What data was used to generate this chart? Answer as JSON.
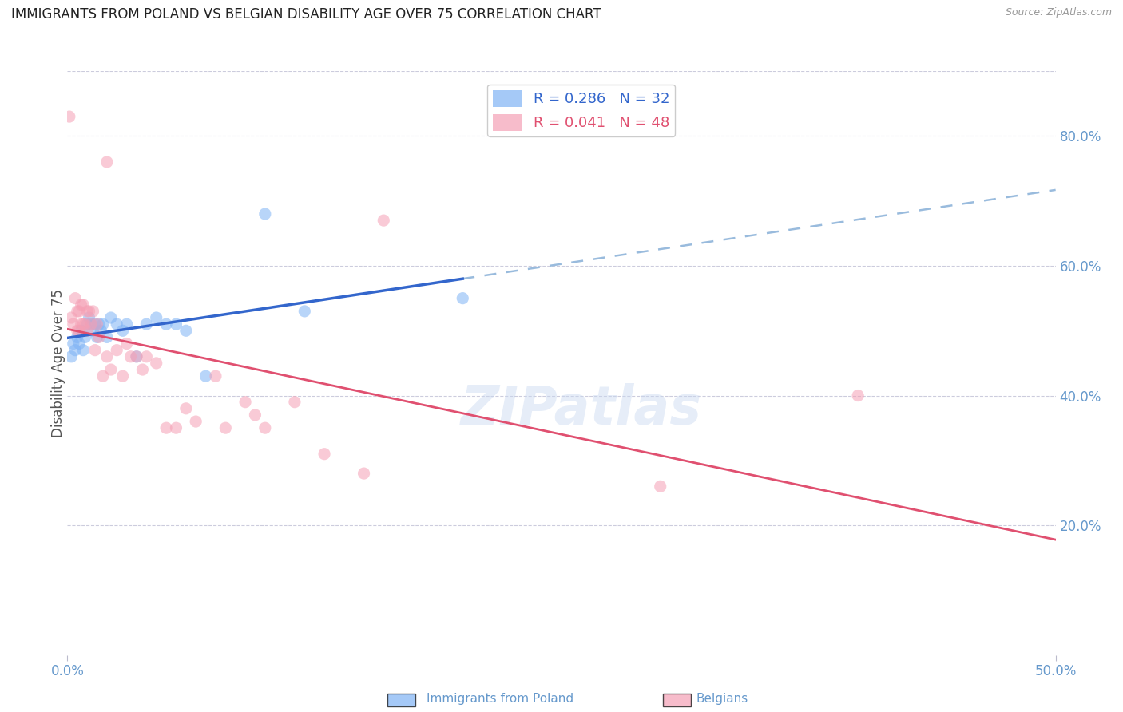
{
  "title": "IMMIGRANTS FROM POLAND VS BELGIAN DISABILITY AGE OVER 75 CORRELATION CHART",
  "source": "Source: ZipAtlas.com",
  "ylabel": "Disability Age Over 75",
  "xlim": [
    0.0,
    0.5
  ],
  "ylim": [
    0.0,
    0.9
  ],
  "xticks": [
    0.0,
    0.5
  ],
  "xticklabels": [
    "0.0%",
    "50.0%"
  ],
  "yticks_right": [
    0.2,
    0.4,
    0.6,
    0.8
  ],
  "yticklabels_right": [
    "20.0%",
    "40.0%",
    "60.0%",
    "80.0%"
  ],
  "legend_entry1": "R = 0.286   N = 32",
  "legend_entry2": "R = 0.041   N = 48",
  "poland_scatter": [
    [
      0.002,
      0.46
    ],
    [
      0.003,
      0.48
    ],
    [
      0.004,
      0.47
    ],
    [
      0.005,
      0.49
    ],
    [
      0.006,
      0.48
    ],
    [
      0.007,
      0.5
    ],
    [
      0.008,
      0.47
    ],
    [
      0.009,
      0.49
    ],
    [
      0.01,
      0.51
    ],
    [
      0.011,
      0.52
    ],
    [
      0.012,
      0.51
    ],
    [
      0.013,
      0.5
    ],
    [
      0.014,
      0.51
    ],
    [
      0.015,
      0.49
    ],
    [
      0.016,
      0.51
    ],
    [
      0.017,
      0.5
    ],
    [
      0.018,
      0.51
    ],
    [
      0.02,
      0.49
    ],
    [
      0.022,
      0.52
    ],
    [
      0.025,
      0.51
    ],
    [
      0.028,
      0.5
    ],
    [
      0.03,
      0.51
    ],
    [
      0.035,
      0.46
    ],
    [
      0.04,
      0.51
    ],
    [
      0.045,
      0.52
    ],
    [
      0.05,
      0.51
    ],
    [
      0.055,
      0.51
    ],
    [
      0.06,
      0.5
    ],
    [
      0.07,
      0.43
    ],
    [
      0.1,
      0.68
    ],
    [
      0.12,
      0.53
    ],
    [
      0.2,
      0.55
    ]
  ],
  "belgian_scatter": [
    [
      0.001,
      0.83
    ],
    [
      0.002,
      0.52
    ],
    [
      0.003,
      0.51
    ],
    [
      0.004,
      0.55
    ],
    [
      0.005,
      0.53
    ],
    [
      0.005,
      0.5
    ],
    [
      0.006,
      0.53
    ],
    [
      0.006,
      0.5
    ],
    [
      0.007,
      0.54
    ],
    [
      0.007,
      0.51
    ],
    [
      0.008,
      0.54
    ],
    [
      0.008,
      0.51
    ],
    [
      0.009,
      0.51
    ],
    [
      0.01,
      0.53
    ],
    [
      0.01,
      0.5
    ],
    [
      0.011,
      0.53
    ],
    [
      0.012,
      0.51
    ],
    [
      0.013,
      0.53
    ],
    [
      0.014,
      0.47
    ],
    [
      0.015,
      0.51
    ],
    [
      0.016,
      0.49
    ],
    [
      0.018,
      0.43
    ],
    [
      0.02,
      0.46
    ],
    [
      0.022,
      0.44
    ],
    [
      0.025,
      0.47
    ],
    [
      0.028,
      0.43
    ],
    [
      0.03,
      0.48
    ],
    [
      0.032,
      0.46
    ],
    [
      0.035,
      0.46
    ],
    [
      0.038,
      0.44
    ],
    [
      0.04,
      0.46
    ],
    [
      0.045,
      0.45
    ],
    [
      0.05,
      0.35
    ],
    [
      0.055,
      0.35
    ],
    [
      0.06,
      0.38
    ],
    [
      0.065,
      0.36
    ],
    [
      0.075,
      0.43
    ],
    [
      0.08,
      0.35
    ],
    [
      0.09,
      0.39
    ],
    [
      0.095,
      0.37
    ],
    [
      0.1,
      0.35
    ],
    [
      0.115,
      0.39
    ],
    [
      0.13,
      0.31
    ],
    [
      0.15,
      0.28
    ],
    [
      0.16,
      0.67
    ],
    [
      0.02,
      0.76
    ],
    [
      0.3,
      0.26
    ],
    [
      0.4,
      0.4
    ]
  ],
  "poland_color": "#7fb3f5",
  "belgian_color": "#f5a0b5",
  "poland_trendline_color": "#3366cc",
  "belgian_trendline_color": "#e05070",
  "poland_dashed_color": "#99bbdd",
  "grid_color": "#ccccdd",
  "axis_color": "#6699cc",
  "marker_size": 120,
  "marker_alpha": 0.55
}
